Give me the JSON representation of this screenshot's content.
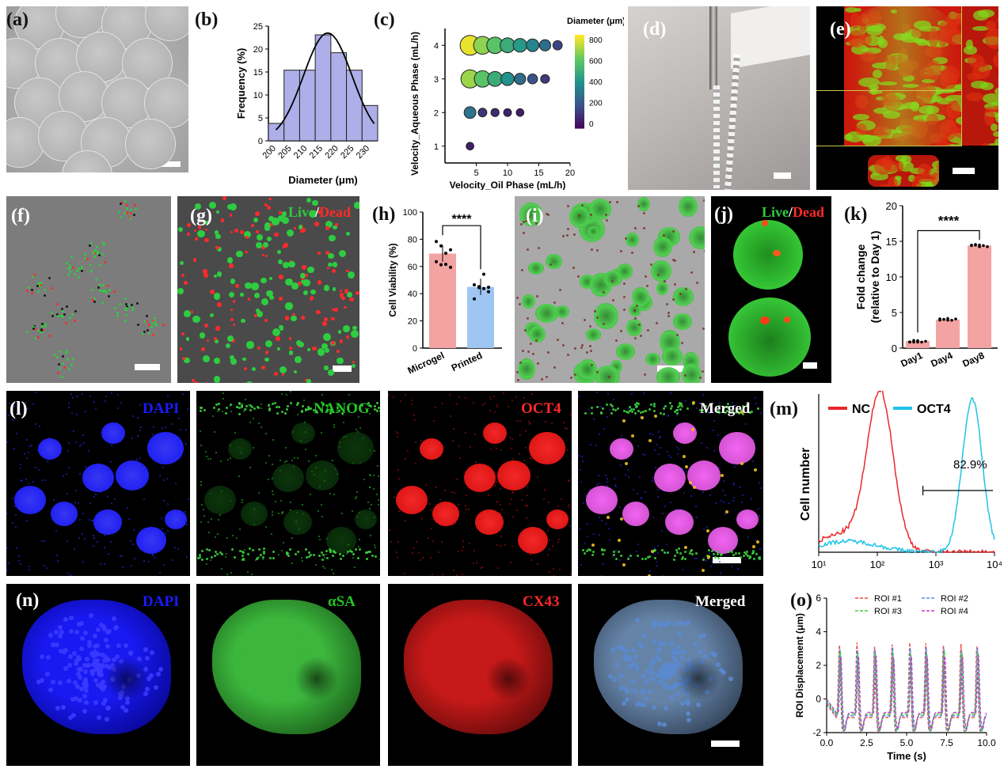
{
  "panel_labels": {
    "a": "(a)",
    "b": "(b)",
    "c": "(c)",
    "d": "(d)",
    "e": "(e)",
    "f": "(f)",
    "g": "(g)",
    "h": "(h)",
    "i": "(i)",
    "j": "(j)",
    "k": "(k)",
    "l": "(l)",
    "m": "(m)",
    "n": "(n)",
    "o": "(o)"
  },
  "live_dead": {
    "live": "Live",
    "slash": "/",
    "dead": "Dead"
  },
  "channels_l": {
    "c1": "DAPI",
    "c2": "NANOG",
    "c3": "OCT4",
    "c4": "Merged"
  },
  "channels_n": {
    "c1": "DAPI",
    "c2": "αSA",
    "c3": "CX43",
    "c4": "Merged"
  },
  "colors": {
    "bar_hist": "#aeaee8",
    "bar_microgel": "#f4a3a3",
    "bar_printed": "#9fc6f2",
    "nc": "#e8282b",
    "oct4": "#1ec3e8",
    "live": "#2ecc40",
    "dead": "#ff2a2a",
    "dapi": "#1a1aff",
    "viridis_low": "#440154",
    "viridis_high": "#fde725"
  },
  "chart_data": [
    {
      "id": "b",
      "type": "bar",
      "xlabel": "Diameter (μm)",
      "ylabel": "Frequency (%)",
      "categories": [
        "200",
        "205",
        "210",
        "215",
        "220",
        "225",
        "230"
      ],
      "values": [
        3.8,
        15.4,
        15.4,
        23.1,
        19.2,
        15.4,
        7.7
      ],
      "ylim": [
        0,
        25
      ],
      "yticks": [
        "0",
        "5",
        "10",
        "15",
        "20",
        "25"
      ],
      "fit": "normal"
    },
    {
      "id": "c",
      "type": "scatter",
      "xlabel": "Velocity_Oil Phase (mL/h)",
      "ylabel": "Velocity_Aqueous Phase (mL/h)",
      "xlim": [
        0,
        20
      ],
      "ylim": [
        0.5,
        4.5
      ],
      "xticks": [
        "5",
        "10",
        "15",
        "20"
      ],
      "yticks": [
        "1",
        "2",
        "3",
        "4"
      ],
      "colorbar_title": "Diameter (μm)",
      "colorbar_ticks": [
        "800",
        "600",
        "400",
        "200",
        "0"
      ],
      "points": [
        [
          4,
          4,
          820
        ],
        [
          6,
          4,
          700
        ],
        [
          8,
          4,
          620
        ],
        [
          10,
          4,
          520
        ],
        [
          12,
          4,
          450
        ],
        [
          14,
          4,
          380
        ],
        [
          16,
          4,
          300
        ],
        [
          18,
          4,
          180
        ],
        [
          4,
          3,
          720
        ],
        [
          6,
          3,
          620
        ],
        [
          8,
          3,
          520
        ],
        [
          10,
          3,
          420
        ],
        [
          12,
          3,
          300
        ],
        [
          14,
          3,
          220
        ],
        [
          16,
          3,
          150
        ],
        [
          4,
          2,
          330
        ],
        [
          6,
          2,
          140
        ],
        [
          8,
          2,
          110
        ],
        [
          10,
          2,
          90
        ],
        [
          12,
          2,
          80
        ],
        [
          4,
          1,
          80
        ]
      ]
    },
    {
      "id": "h",
      "type": "bar",
      "ylabel": "Cell Viability (%)",
      "categories": [
        "Microgel",
        "Printed"
      ],
      "values": [
        69.5,
        45
      ],
      "ylim": [
        0,
        100
      ],
      "yticks": [
        "0",
        "20",
        "40",
        "60",
        "80",
        "100"
      ],
      "significance": "****"
    },
    {
      "id": "k",
      "type": "bar",
      "ylabel": "Fold change\n(relative to Day 1)",
      "ylabel_l1": "Fold change",
      "ylabel_l2": "(relative to Day 1)",
      "categories": [
        "Day1",
        "Day4",
        "Day8"
      ],
      "values": [
        1,
        4,
        14.4
      ],
      "ylim": [
        0,
        20
      ],
      "yticks": [
        "0",
        "5",
        "10",
        "15",
        "20"
      ],
      "significance": "****"
    },
    {
      "id": "m",
      "type": "line",
      "ylabel": "Cell number",
      "xscale": "log",
      "xlim": [
        10,
        10000
      ],
      "xticks": [
        "10¹",
        "10²",
        "10³",
        "10⁴"
      ],
      "gate_label": "82.9%",
      "series": [
        {
          "name": "NC"
        },
        {
          "name": "OCT4"
        }
      ]
    },
    {
      "id": "o",
      "type": "line",
      "xlabel": "Time (s)",
      "ylabel": "ROI Displacement (μm)",
      "xlim": [
        0,
        10
      ],
      "ylim": [
        -2,
        6
      ],
      "xticks": [
        "0.0",
        "2.5",
        "5.0",
        "7.5",
        "10.0"
      ],
      "yticks": [
        "-2",
        "0",
        "2",
        "4",
        "6"
      ],
      "series": [
        {
          "name": "ROI #1"
        },
        {
          "name": "ROI #2"
        },
        {
          "name": "ROI #3"
        },
        {
          "name": "ROI #4"
        }
      ]
    }
  ]
}
